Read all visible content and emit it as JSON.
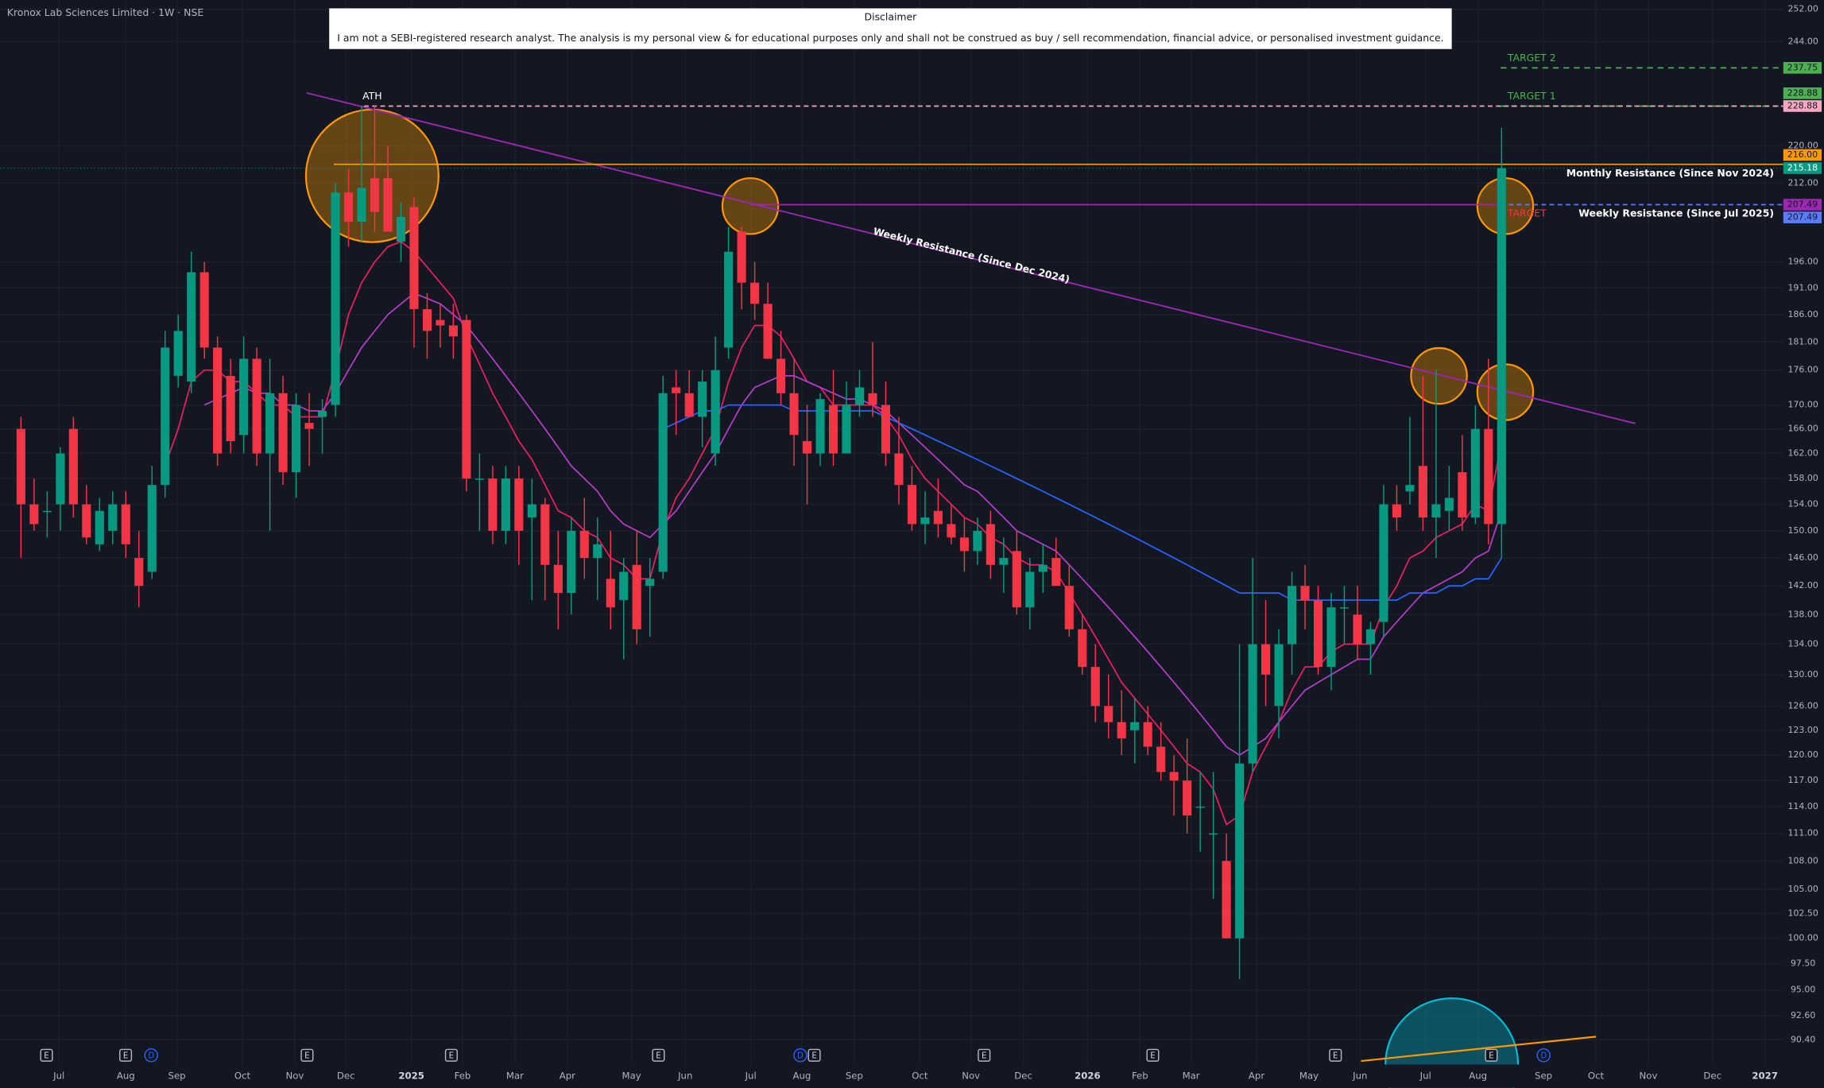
{
  "disclaimer": {
    "title": "Disclaimer",
    "text": "I am not a SEBI-registered research analyst. The analysis is my personal view & for educational purposes only and shall not be construed as buy / sell recommendation, financial advice, or personalised investment guidance."
  },
  "chart_data": {
    "type": "candlestick",
    "title": "Kronox Lab Sciences Limited · 1W · NSE",
    "log_scale": true,
    "grid": true,
    "up_color": "#089981",
    "down_color": "#f23645",
    "xlim": [
      -1.6,
      134.5
    ],
    "ylim": [
      88.2,
      254.3
    ],
    "xticks": [
      {
        "value": 2.9,
        "label": "Jul"
      },
      {
        "value": 8.0,
        "label": "Aug"
      },
      {
        "value": 11.9,
        "label": "Sep"
      },
      {
        "value": 16.9,
        "label": "Oct"
      },
      {
        "value": 20.9,
        "label": "Nov"
      },
      {
        "value": 24.8,
        "label": "Dec"
      },
      {
        "value": 29.8,
        "label": "2025"
      },
      {
        "value": 33.7,
        "label": "Feb"
      },
      {
        "value": 37.7,
        "label": "Mar"
      },
      {
        "value": 41.7,
        "label": "Apr"
      },
      {
        "value": 46.6,
        "label": "May"
      },
      {
        "value": 50.7,
        "label": "Jun"
      },
      {
        "value": 55.7,
        "label": "Jul"
      },
      {
        "value": 59.6,
        "label": "Aug"
      },
      {
        "value": 63.6,
        "label": "Sep"
      },
      {
        "value": 68.6,
        "label": "Oct"
      },
      {
        "value": 72.5,
        "label": "Nov"
      },
      {
        "value": 76.5,
        "label": "Dec"
      },
      {
        "value": 81.4,
        "label": "2026"
      },
      {
        "value": 85.4,
        "label": "Feb"
      },
      {
        "value": 89.3,
        "label": "Mar"
      },
      {
        "value": 94.3,
        "label": "Apr"
      },
      {
        "value": 98.3,
        "label": "May"
      },
      {
        "value": 102.2,
        "label": "Jun"
      },
      {
        "value": 107.2,
        "label": "Jul"
      },
      {
        "value": 111.2,
        "label": "Aug"
      },
      {
        "value": 116.2,
        "label": "Sep"
      },
      {
        "value": 120.2,
        "label": "Oct"
      },
      {
        "value": 124.2,
        "label": "Nov"
      },
      {
        "value": 129.1,
        "label": "Dec"
      },
      {
        "value": 133.1,
        "label": "2027"
      }
    ],
    "yticks": [
      {
        "value": 252,
        "label": "252.00"
      },
      {
        "value": 244,
        "label": "244.00"
      },
      {
        "value": 220,
        "label": "220.00"
      },
      {
        "value": 212,
        "label": "212.00"
      },
      {
        "value": 196,
        "label": "196.00"
      },
      {
        "value": 191,
        "label": "191.00"
      },
      {
        "value": 186,
        "label": "186.00"
      },
      {
        "value": 181,
        "label": "181.00"
      },
      {
        "value": 176,
        "label": "176.00"
      },
      {
        "value": 170,
        "label": "170.00"
      },
      {
        "value": 166,
        "label": "166.00"
      },
      {
        "value": 162,
        "label": "162.00"
      },
      {
        "value": 158,
        "label": "158.00"
      },
      {
        "value": 154,
        "label": "154.00"
      },
      {
        "value": 150,
        "label": "150.00"
      },
      {
        "value": 146,
        "label": "146.00"
      },
      {
        "value": 142,
        "label": "142.00"
      },
      {
        "value": 138,
        "label": "138.00"
      },
      {
        "value": 134,
        "label": "134.00"
      },
      {
        "value": 130,
        "label": "130.00"
      },
      {
        "value": 126,
        "label": "126.00"
      },
      {
        "value": 123,
        "label": "123.00"
      },
      {
        "value": 120,
        "label": "120.00"
      },
      {
        "value": 117,
        "label": "117.00"
      },
      {
        "value": 114,
        "label": "114.00"
      },
      {
        "value": 111,
        "label": "111.00"
      },
      {
        "value": 108,
        "label": "108.00"
      },
      {
        "value": 105,
        "label": "105.00"
      },
      {
        "value": 102.5,
        "label": "102.50"
      },
      {
        "value": 100,
        "label": "100.00"
      },
      {
        "value": 97.5,
        "label": "97.50"
      },
      {
        "value": 95,
        "label": "95.00"
      },
      {
        "value": 92.6,
        "label": "92.60"
      },
      {
        "value": 90.4,
        "label": "90.40"
      }
    ],
    "ohlc": [
      [
        166,
        168,
        146,
        154
      ],
      [
        154,
        158,
        150,
        151
      ],
      [
        153,
        156,
        149,
        153
      ],
      [
        154,
        163,
        150,
        162
      ],
      [
        166,
        168,
        152,
        154
      ],
      [
        154,
        157,
        148,
        149
      ],
      [
        148,
        155,
        147,
        153
      ],
      [
        150,
        156,
        148,
        154
      ],
      [
        154,
        156,
        146,
        148
      ],
      [
        146,
        150,
        139,
        142
      ],
      [
        144,
        160,
        143,
        157
      ],
      [
        157,
        183,
        155,
        180
      ],
      [
        175,
        186,
        173,
        183
      ],
      [
        174,
        198,
        172,
        194
      ],
      [
        194,
        196,
        178,
        180
      ],
      [
        180,
        182,
        160,
        162
      ],
      [
        175,
        178,
        162,
        164
      ],
      [
        165,
        182,
        162,
        178
      ],
      [
        178,
        180,
        160,
        162
      ],
      [
        162,
        178,
        150,
        172
      ],
      [
        172,
        175,
        157,
        159
      ],
      [
        159,
        172,
        155,
        170
      ],
      [
        167,
        172,
        160,
        166
      ],
      [
        168,
        171,
        162,
        169
      ],
      [
        170,
        212,
        168,
        210
      ],
      [
        210,
        215,
        199,
        204
      ],
      [
        204,
        229,
        200,
        211
      ],
      [
        213,
        229,
        202,
        206
      ],
      [
        213,
        220,
        203,
        202
      ],
      [
        200,
        208,
        196,
        205
      ],
      [
        207,
        209,
        180,
        187
      ],
      [
        187,
        190,
        178,
        183
      ],
      [
        185,
        188,
        180,
        184
      ],
      [
        184,
        188,
        178,
        182
      ],
      [
        185,
        186,
        156,
        158
      ],
      [
        158,
        162,
        150,
        158
      ],
      [
        158,
        160,
        148,
        150
      ],
      [
        150,
        160,
        148,
        158
      ],
      [
        158,
        160,
        145,
        150
      ],
      [
        152,
        158,
        140,
        154
      ],
      [
        154,
        155,
        140,
        145
      ],
      [
        145,
        150,
        136,
        141
      ],
      [
        141,
        152,
        138,
        150
      ],
      [
        150,
        155,
        143,
        146
      ],
      [
        146,
        152,
        140,
        148
      ],
      [
        143,
        150,
        136,
        139
      ],
      [
        140,
        146,
        132,
        144
      ],
      [
        145,
        150,
        134,
        136
      ],
      [
        142,
        146,
        135,
        143
      ],
      [
        144,
        175,
        143,
        172
      ],
      [
        173,
        176,
        165,
        172
      ],
      [
        172,
        176,
        168,
        168
      ],
      [
        168,
        176,
        163,
        174
      ],
      [
        162,
        182,
        160,
        176
      ],
      [
        180,
        203,
        178,
        198
      ],
      [
        202,
        203,
        187,
        192
      ],
      [
        192,
        196,
        185,
        188
      ],
      [
        188,
        192,
        178,
        178
      ],
      [
        178,
        183,
        170,
        172
      ],
      [
        172,
        178,
        160,
        165
      ],
      [
        164,
        170,
        154,
        162
      ],
      [
        162,
        172,
        160,
        171
      ],
      [
        170,
        176,
        160,
        162
      ],
      [
        162,
        174,
        162,
        170
      ],
      [
        170,
        176,
        168,
        173
      ],
      [
        172,
        181,
        168,
        170
      ],
      [
        170,
        174,
        160,
        162
      ],
      [
        162,
        168,
        154,
        157
      ],
      [
        157,
        160,
        150,
        151
      ],
      [
        151,
        156,
        148,
        152
      ],
      [
        153,
        158,
        149,
        151
      ],
      [
        151,
        154,
        148,
        149
      ],
      [
        149,
        152,
        144,
        147
      ],
      [
        147,
        152,
        145,
        150
      ],
      [
        151,
        153,
        143,
        145
      ],
      [
        145,
        149,
        141,
        146
      ],
      [
        147,
        150,
        138,
        139
      ],
      [
        139,
        146,
        136,
        144
      ],
      [
        144,
        148,
        141,
        145
      ],
      [
        146,
        149,
        142,
        142
      ],
      [
        142,
        145,
        135,
        136
      ],
      [
        136,
        138,
        130,
        131
      ],
      [
        131,
        134,
        124,
        126
      ],
      [
        126,
        130,
        122,
        124
      ],
      [
        124,
        128,
        120,
        122
      ],
      [
        123,
        127,
        119,
        124
      ],
      [
        124,
        126,
        120,
        121
      ],
      [
        121,
        124,
        117,
        118
      ],
      [
        118,
        120,
        113,
        117
      ],
      [
        117,
        122,
        111,
        113
      ],
      [
        114,
        118,
        109,
        114
      ],
      [
        111,
        118,
        104,
        111
      ],
      [
        108,
        111,
        100,
        100
      ],
      [
        100,
        134,
        96,
        119
      ],
      [
        119,
        146,
        118,
        134
      ],
      [
        134,
        140,
        126,
        130
      ],
      [
        126,
        136,
        122,
        134
      ],
      [
        134,
        144,
        130,
        142
      ],
      [
        142,
        145,
        136,
        140
      ],
      [
        140,
        142,
        130,
        131
      ],
      [
        131,
        141,
        128,
        139
      ],
      [
        139,
        142,
        134,
        139
      ],
      [
        138,
        142,
        132,
        134
      ],
      [
        134,
        137,
        130,
        136
      ],
      [
        137,
        157,
        135,
        154
      ],
      [
        154,
        157,
        150,
        152
      ],
      [
        156,
        168,
        154,
        157
      ],
      [
        160,
        175,
        150,
        152
      ],
      [
        152,
        176,
        146,
        154
      ],
      [
        153,
        160,
        150,
        155
      ],
      [
        159,
        165,
        150,
        152
      ],
      [
        152,
        170,
        151,
        166
      ],
      [
        166,
        178,
        148,
        151
      ],
      [
        151,
        224,
        146,
        215.18
      ]
    ],
    "series": [
      {
        "color": "#e91e63",
        "values": [
          null,
          null,
          null,
          null,
          null,
          null,
          null,
          null,
          null,
          null,
          null,
          160,
          166,
          174,
          176,
          176,
          174,
          174,
          172,
          170,
          170,
          168,
          168,
          168,
          176,
          186,
          192,
          196,
          199,
          200,
          198,
          195,
          192,
          189,
          182,
          177,
          172,
          168,
          164,
          161,
          157,
          153,
          152,
          150,
          149,
          146,
          145,
          143,
          143,
          150,
          155,
          158,
          162,
          166,
          174,
          180,
          184,
          184,
          182,
          178,
          174,
          173,
          170,
          170,
          170,
          170,
          168,
          165,
          161,
          158,
          156,
          154,
          152,
          151,
          149,
          148,
          146,
          145,
          145,
          144,
          141,
          138,
          135,
          132,
          129,
          127,
          125,
          123,
          121,
          119,
          118,
          116,
          112,
          113,
          118,
          121,
          124,
          128,
          131,
          131,
          133,
          134,
          134,
          134,
          139,
          142,
          146,
          147,
          149,
          150,
          151,
          154,
          153,
          164
        ]
      },
      {
        "color": "#b43cc8",
        "values": [
          null,
          null,
          null,
          null,
          null,
          null,
          null,
          null,
          null,
          null,
          null,
          null,
          null,
          null,
          170,
          171,
          172,
          173,
          172,
          172,
          170,
          170,
          169,
          169,
          172,
          176,
          180,
          183,
          186,
          188,
          190,
          189,
          188,
          186,
          184,
          181,
          178,
          175,
          172,
          169,
          166,
          163,
          160,
          158,
          156,
          153,
          151,
          150,
          149,
          151,
          153,
          156,
          159,
          162,
          166,
          170,
          173,
          174,
          175,
          175,
          174,
          173,
          172,
          171,
          171,
          170,
          169,
          167,
          165,
          163,
          161,
          159,
          157,
          156,
          154,
          152,
          150,
          149,
          148,
          147,
          145,
          143,
          141,
          139,
          137,
          135,
          133,
          131,
          129,
          127,
          125,
          123,
          121,
          120,
          121,
          122,
          124,
          126,
          128,
          129,
          130,
          131,
          132,
          132,
          135,
          137,
          139,
          141,
          142,
          143,
          144,
          146,
          147,
          153
        ]
      },
      {
        "color": "#2962ff",
        "values": [
          null,
          null,
          null,
          null,
          null,
          null,
          null,
          null,
          null,
          null,
          null,
          null,
          null,
          null,
          null,
          null,
          null,
          null,
          null,
          null,
          null,
          null,
          null,
          null,
          null,
          null,
          null,
          null,
          null,
          null,
          null,
          null,
          null,
          null,
          null,
          null,
          null,
          null,
          null,
          null,
          null,
          null,
          null,
          null,
          null,
          null,
          null,
          null,
          null,
          166,
          167,
          168,
          169,
          169,
          170,
          170,
          170,
          170,
          170,
          169,
          169,
          169,
          169,
          169,
          169,
          169,
          168,
          167,
          166,
          165,
          164,
          163,
          162,
          161,
          160,
          159,
          158,
          157,
          156,
          155,
          154,
          153,
          152,
          151,
          150,
          149,
          148,
          147,
          146,
          145,
          144,
          143,
          142,
          141,
          141,
          141,
          141,
          140,
          140,
          140,
          140,
          140,
          140,
          140,
          140,
          140,
          141,
          141,
          141,
          142,
          142,
          143,
          143,
          146
        ]
      }
    ],
    "trendline": {
      "label": "Weekly Resistance (Since Dec 2024)",
      "color": "#9c27b0",
      "start": [
        21.8,
        231.9
      ],
      "end": [
        123.2,
        166.9
      ]
    },
    "levels": [
      {
        "label": "TARGET 2",
        "value": 237.75,
        "color": "#4caf50"
      },
      {
        "label": "TARGET 1",
        "value": 228.88,
        "color": "#4caf50"
      },
      {
        "label": "ATH",
        "value": 228.88,
        "color": "#f7a8c0"
      },
      {
        "label": "Monthly Resistance (Since Nov 2024)",
        "value": 216,
        "value_label": "216.00",
        "color": "#ff9800"
      },
      {
        "label": "Weekly Resistance (Since Jul 2025)",
        "value": 207.49,
        "color": "#9c27b0"
      },
      {
        "label": "TARGET",
        "value": 207.49,
        "color": "#5b7cfa"
      }
    ],
    "events": [
      "E",
      "E",
      "D",
      "E",
      "E",
      "E",
      "D",
      "E",
      "E",
      "E",
      "E",
      "E",
      "D"
    ]
  }
}
